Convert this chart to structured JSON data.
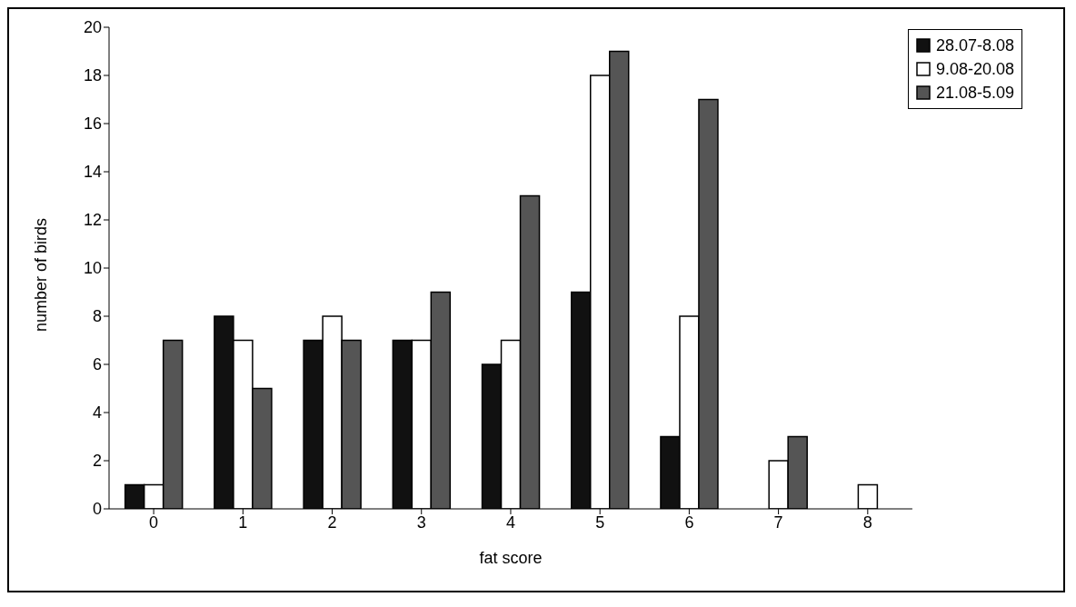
{
  "chart_data": {
    "type": "bar",
    "xlabel": "fat score",
    "ylabel": "number of birds",
    "categories": [
      "0",
      "1",
      "2",
      "3",
      "4",
      "5",
      "6",
      "7",
      "8"
    ],
    "series": [
      {
        "name": "28.07-8.08",
        "color": "#111111",
        "values": [
          1,
          8,
          7,
          7,
          6,
          9,
          3,
          0,
          0
        ]
      },
      {
        "name": "9.08-20.08",
        "color": "#ffffff",
        "values": [
          1,
          7,
          8,
          7,
          7,
          18,
          8,
          2,
          1
        ]
      },
      {
        "name": "21.08-5.09",
        "color": "#555555",
        "values": [
          7,
          5,
          7,
          9,
          13,
          19,
          17,
          3,
          0
        ]
      }
    ],
    "ylim": [
      0,
      20
    ],
    "yticks": [
      0,
      2,
      4,
      6,
      8,
      10,
      12,
      14,
      16,
      18,
      20
    ],
    "grid": false,
    "legend": "top right"
  }
}
